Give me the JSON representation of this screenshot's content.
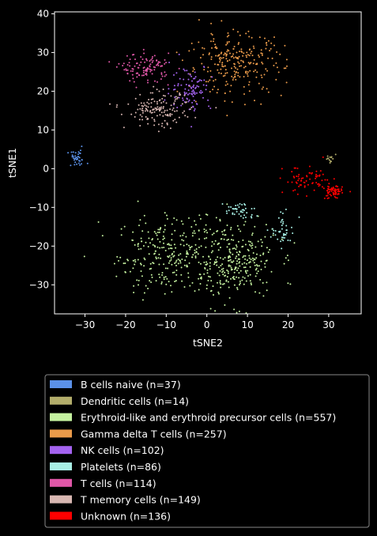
{
  "chart_data": {
    "type": "scatter",
    "title": "",
    "xlabel": "tSNE2",
    "ylabel": "tSNE1",
    "xlim": [
      -37.5,
      38
    ],
    "ylim": [
      -37.5,
      40.5
    ],
    "xticks": [
      -30,
      -20,
      -10,
      0,
      10,
      20,
      30
    ],
    "yticks": [
      -30,
      -20,
      -10,
      0,
      10,
      20,
      30,
      40
    ],
    "tick_labels_x": [
      "−30",
      "−20",
      "−10",
      "0",
      "10",
      "20",
      "30"
    ],
    "tick_labels_y": [
      "−30",
      "−20",
      "−10",
      "0",
      "10",
      "20",
      "30",
      "40"
    ],
    "grid": false,
    "legend_position": "bottom",
    "background": "#000000",
    "series": [
      {
        "name": "B cells naive (n=37)",
        "color": "#5b91e8",
        "count": 37,
        "clusters": [
          {
            "cx": -32,
            "cy": 2.5,
            "sx": 1.2,
            "sy": 1.1
          }
        ]
      },
      {
        "name": "Dendritic cells (n=14)",
        "color": "#b3ad6b",
        "count": 14,
        "clusters": [
          {
            "cx": 30.5,
            "cy": 2.5,
            "sx": 0.6,
            "sy": 0.6
          }
        ]
      },
      {
        "name": "Erythroid-like and erythroid precursor cells (n=557)",
        "color": "#c5f2a0",
        "count": 557,
        "clusters": [
          {
            "cx": -9,
            "cy": -22,
            "sx": 6.5,
            "sy": 5
          },
          {
            "cx": 7,
            "cy": -24,
            "sx": 5,
            "sy": 5
          }
        ]
      },
      {
        "name": "Gamma delta T cells (n=257)",
        "color": "#e99a4a",
        "count": 257,
        "clusters": [
          {
            "cx": 7,
            "cy": 27,
            "sx": 6,
            "sy": 4
          }
        ]
      },
      {
        "name": "NK cells (n=102)",
        "color": "#a463f0",
        "count": 102,
        "clusters": [
          {
            "cx": -4,
            "cy": 21,
            "sx": 2.5,
            "sy": 3
          }
        ]
      },
      {
        "name": "Platelets (n=86)",
        "color": "#a8f0e6",
        "count": 86,
        "clusters": [
          {
            "cx": 19,
            "cy": -16,
            "sx": 1.5,
            "sy": 2
          },
          {
            "cx": 8,
            "cy": -11,
            "sx": 2,
            "sy": 1.2
          }
        ]
      },
      {
        "name": "T cells (n=114)",
        "color": "#e057a8",
        "count": 114,
        "clusters": [
          {
            "cx": -15,
            "cy": 26,
            "sx": 3,
            "sy": 1.8
          }
        ]
      },
      {
        "name": "T memory cells (n=149)",
        "color": "#d8b7b2",
        "count": 149,
        "clusters": [
          {
            "cx": -12,
            "cy": 15,
            "sx": 4,
            "sy": 2.2
          }
        ]
      },
      {
        "name": "Unknown (n=136)",
        "color": "#ff0000",
        "count": 136,
        "clusters": [
          {
            "cx": 25,
            "cy": -3,
            "sx": 3,
            "sy": 1.8
          },
          {
            "cx": 31,
            "cy": -6,
            "sx": 1.2,
            "sy": 0.9
          }
        ]
      }
    ]
  }
}
